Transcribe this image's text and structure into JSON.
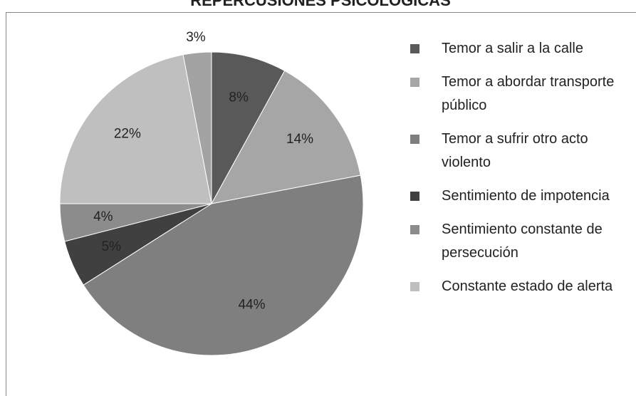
{
  "chart_data": {
    "type": "pie",
    "title": "REPERCUSIONES PSICOLÓGICAS",
    "categories": [
      "Temor a salir a la calle",
      "Temor a abordar transporte público",
      "Temor a sufrir otro acto violento",
      "Sentimiento de impotencia",
      "Sentimiento constante de persecución",
      "Constante estado de alerta",
      null
    ],
    "values": [
      8,
      14,
      44,
      5,
      4,
      22,
      3
    ],
    "value_labels": [
      "8%",
      "14%",
      "44%",
      "5%",
      "4%",
      "22%",
      "3%"
    ],
    "colors": [
      "#595959",
      "#a6a6a6",
      "#7f7f7f",
      "#404040",
      "#8c8c8c",
      "#bfbfbf",
      "#a3a3a3"
    ],
    "legend": "right"
  }
}
